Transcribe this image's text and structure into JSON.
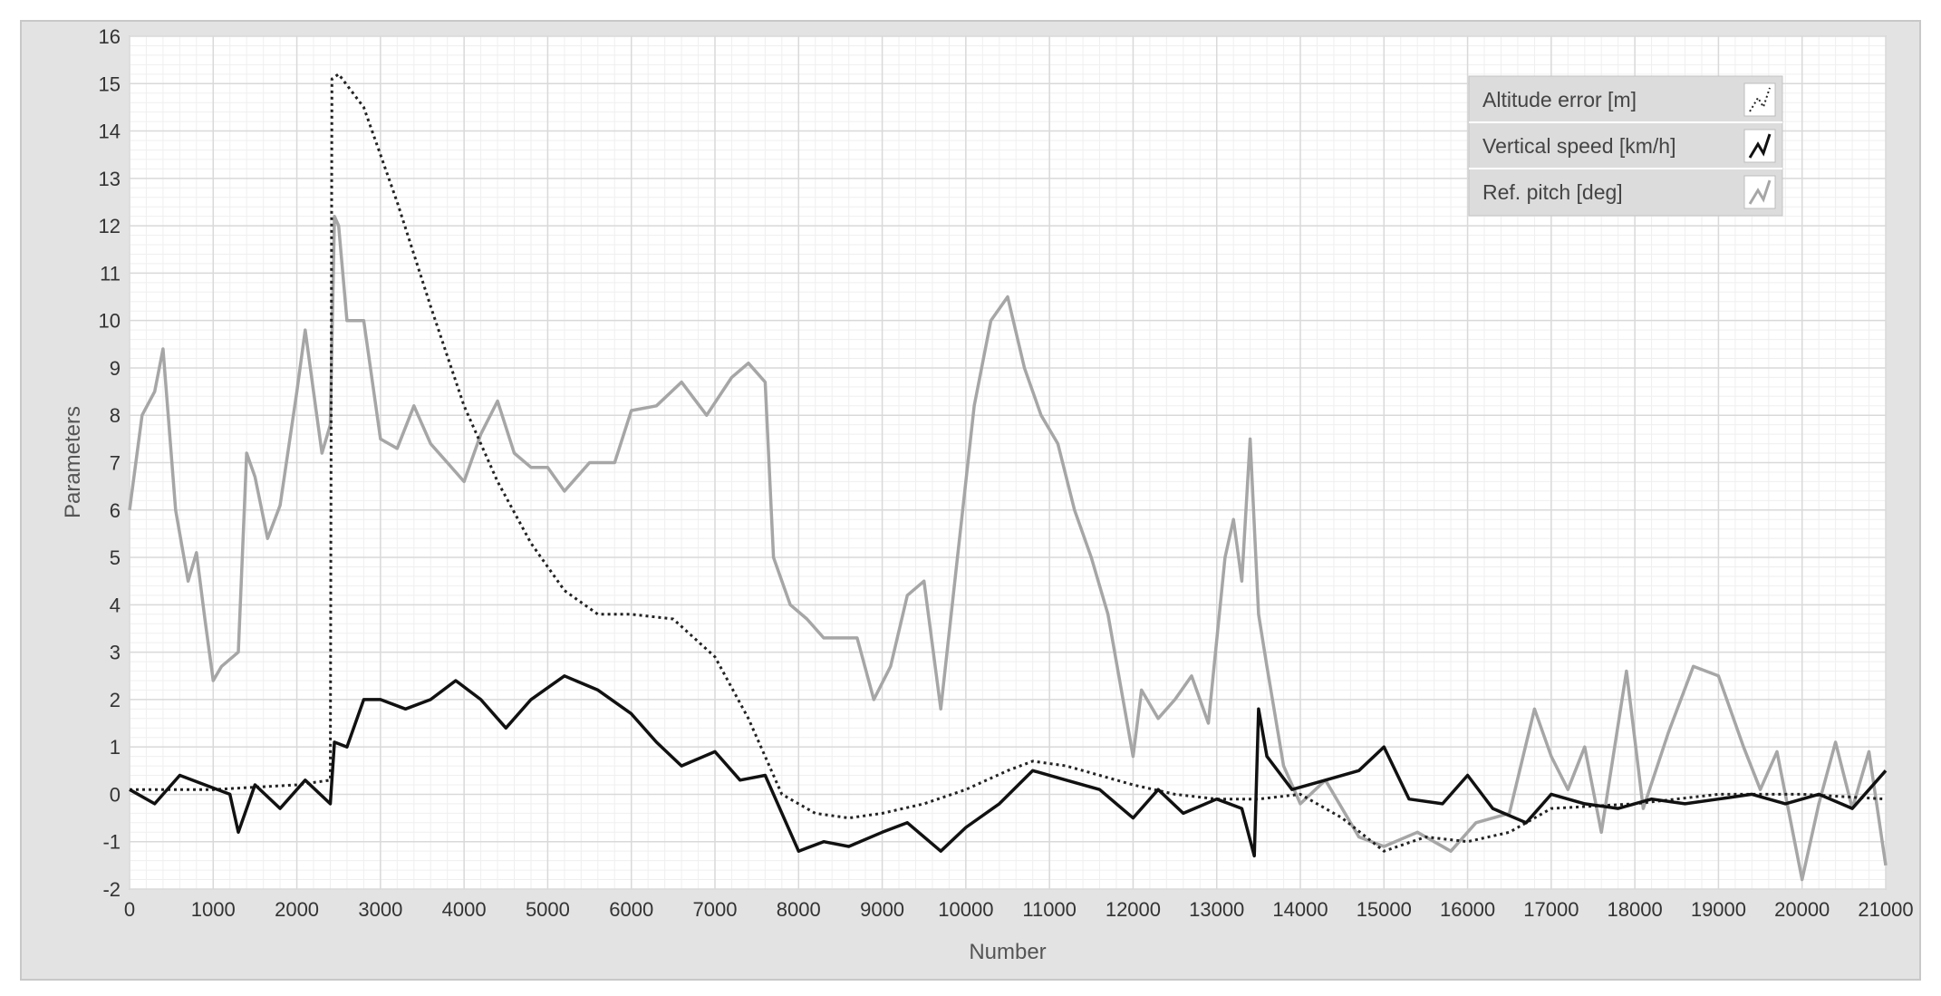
{
  "chart_data": {
    "type": "line",
    "title": "",
    "xlabel": "Number",
    "ylabel": "Parameters",
    "xlim": [
      0,
      21000
    ],
    "ylim": [
      -2,
      16
    ],
    "xticks": [
      0,
      1000,
      2000,
      3000,
      4000,
      5000,
      6000,
      7000,
      8000,
      9000,
      10000,
      11000,
      12000,
      13000,
      14000,
      15000,
      16000,
      17000,
      18000,
      19000,
      20000,
      21000
    ],
    "yticks": [
      -2,
      -1,
      0,
      1,
      2,
      3,
      4,
      5,
      6,
      7,
      8,
      9,
      10,
      11,
      12,
      13,
      14,
      15,
      16
    ],
    "grid": true,
    "legend_position": "top-right",
    "series": [
      {
        "name": "Altitude error [m]",
        "color": "#222222",
        "style": "dotted",
        "x": [
          0,
          1000,
          2000,
          2400,
          2420,
          2500,
          2800,
          3200,
          3600,
          4000,
          4400,
          4800,
          5200,
          5600,
          6000,
          6500,
          7000,
          7400,
          7800,
          8200,
          8600,
          9000,
          9500,
          10000,
          10500,
          10800,
          11200,
          11600,
          12000,
          12500,
          13000,
          13500,
          14000,
          14500,
          15000,
          15500,
          16000,
          16500,
          17000,
          18000,
          19000,
          20000,
          21000
        ],
        "y": [
          0.1,
          0.1,
          0.2,
          0.3,
          15.1,
          15.2,
          14.5,
          12.5,
          10.3,
          8.2,
          6.6,
          5.3,
          4.3,
          3.8,
          3.8,
          3.7,
          2.9,
          1.6,
          0.0,
          -0.4,
          -0.5,
          -0.4,
          -0.2,
          0.1,
          0.5,
          0.7,
          0.6,
          0.4,
          0.2,
          0.0,
          -0.1,
          -0.1,
          0.0,
          -0.5,
          -1.2,
          -0.9,
          -1.0,
          -0.8,
          -0.3,
          -0.2,
          0.0,
          0.0,
          -0.1
        ]
      },
      {
        "name": "Vertical speed [km/h]",
        "color": "#111111",
        "style": "solid",
        "x": [
          0,
          300,
          600,
          900,
          1200,
          1300,
          1500,
          1800,
          2100,
          2400,
          2450,
          2600,
          2800,
          3000,
          3300,
          3600,
          3900,
          4200,
          4500,
          4800,
          5200,
          5600,
          6000,
          6300,
          6600,
          7000,
          7300,
          7600,
          8000,
          8300,
          8600,
          9000,
          9300,
          9700,
          10000,
          10400,
          10800,
          11200,
          11600,
          12000,
          12300,
          12600,
          13000,
          13300,
          13450,
          13500,
          13600,
          13900,
          14300,
          14700,
          15000,
          15300,
          15700,
          16000,
          16300,
          16700,
          17000,
          17400,
          17800,
          18200,
          18600,
          19000,
          19400,
          19800,
          20200,
          20600,
          21000
        ],
        "y": [
          0.1,
          -0.2,
          0.4,
          0.2,
          0.0,
          -0.8,
          0.2,
          -0.3,
          0.3,
          -0.2,
          1.1,
          1.0,
          2.0,
          2.0,
          1.8,
          2.0,
          2.4,
          2.0,
          1.4,
          2.0,
          2.5,
          2.2,
          1.7,
          1.1,
          0.6,
          0.9,
          0.3,
          0.4,
          -1.2,
          -1.0,
          -1.1,
          -0.8,
          -0.6,
          -1.2,
          -0.7,
          -0.2,
          0.5,
          0.3,
          0.1,
          -0.5,
          0.1,
          -0.4,
          -0.1,
          -0.3,
          -1.3,
          1.8,
          0.8,
          0.1,
          0.3,
          0.5,
          1.0,
          -0.1,
          -0.2,
          0.4,
          -0.3,
          -0.6,
          0.0,
          -0.2,
          -0.3,
          -0.1,
          -0.2,
          -0.1,
          0.0,
          -0.2,
          0.0,
          -0.3,
          0.5
        ]
      },
      {
        "name": "Ref. pitch [deg]",
        "color": "#a6a6a6",
        "style": "solid",
        "x": [
          0,
          150,
          300,
          400,
          550,
          700,
          800,
          900,
          1000,
          1100,
          1300,
          1400,
          1500,
          1650,
          1800,
          2000,
          2100,
          2200,
          2300,
          2400,
          2450,
          2500,
          2600,
          2800,
          3000,
          3200,
          3400,
          3600,
          3800,
          4000,
          4200,
          4400,
          4600,
          4800,
          5000,
          5200,
          5500,
          5800,
          6000,
          6300,
          6600,
          6900,
          7200,
          7400,
          7600,
          7700,
          7900,
          8100,
          8300,
          8500,
          8700,
          8900,
          9100,
          9300,
          9500,
          9700,
          9900,
          10100,
          10300,
          10500,
          10700,
          10900,
          11100,
          11300,
          11500,
          11700,
          12000,
          12100,
          12300,
          12500,
          12700,
          12900,
          13100,
          13200,
          13300,
          13400,
          13500,
          13600,
          13800,
          14000,
          14300,
          14700,
          15000,
          15400,
          15800,
          16100,
          16500,
          16800,
          17000,
          17200,
          17400,
          17600,
          17900,
          18100,
          18400,
          18700,
          19000,
          19300,
          19500,
          19700,
          20000,
          20200,
          20400,
          20600,
          20800,
          21000
        ],
        "y": [
          6.0,
          8.0,
          8.5,
          9.4,
          6.0,
          4.5,
          5.1,
          3.7,
          2.4,
          2.7,
          3.0,
          7.2,
          6.7,
          5.4,
          6.1,
          8.5,
          9.8,
          8.5,
          7.2,
          7.8,
          12.2,
          12.0,
          10.0,
          10.0,
          7.5,
          7.3,
          8.2,
          7.4,
          7.0,
          6.6,
          7.6,
          8.3,
          7.2,
          6.9,
          6.9,
          6.4,
          7.0,
          7.0,
          8.1,
          8.2,
          8.7,
          8.0,
          8.8,
          9.1,
          8.7,
          5.0,
          4.0,
          3.7,
          3.3,
          3.3,
          3.3,
          2.0,
          2.7,
          4.2,
          4.5,
          1.8,
          5.0,
          8.2,
          10.0,
          10.5,
          9.0,
          8.0,
          7.4,
          6.0,
          5.0,
          3.8,
          0.8,
          2.2,
          1.6,
          2.0,
          2.5,
          1.5,
          5.0,
          5.8,
          4.5,
          7.5,
          3.8,
          2.7,
          0.6,
          -0.2,
          0.3,
          -0.9,
          -1.1,
          -0.8,
          -1.2,
          -0.6,
          -0.4,
          1.8,
          0.8,
          0.1,
          1.0,
          -0.8,
          2.6,
          -0.3,
          1.3,
          2.7,
          2.5,
          1.0,
          0.1,
          0.9,
          -1.8,
          -0.2,
          1.1,
          -0.3,
          0.9,
          -1.5
        ]
      }
    ]
  }
}
